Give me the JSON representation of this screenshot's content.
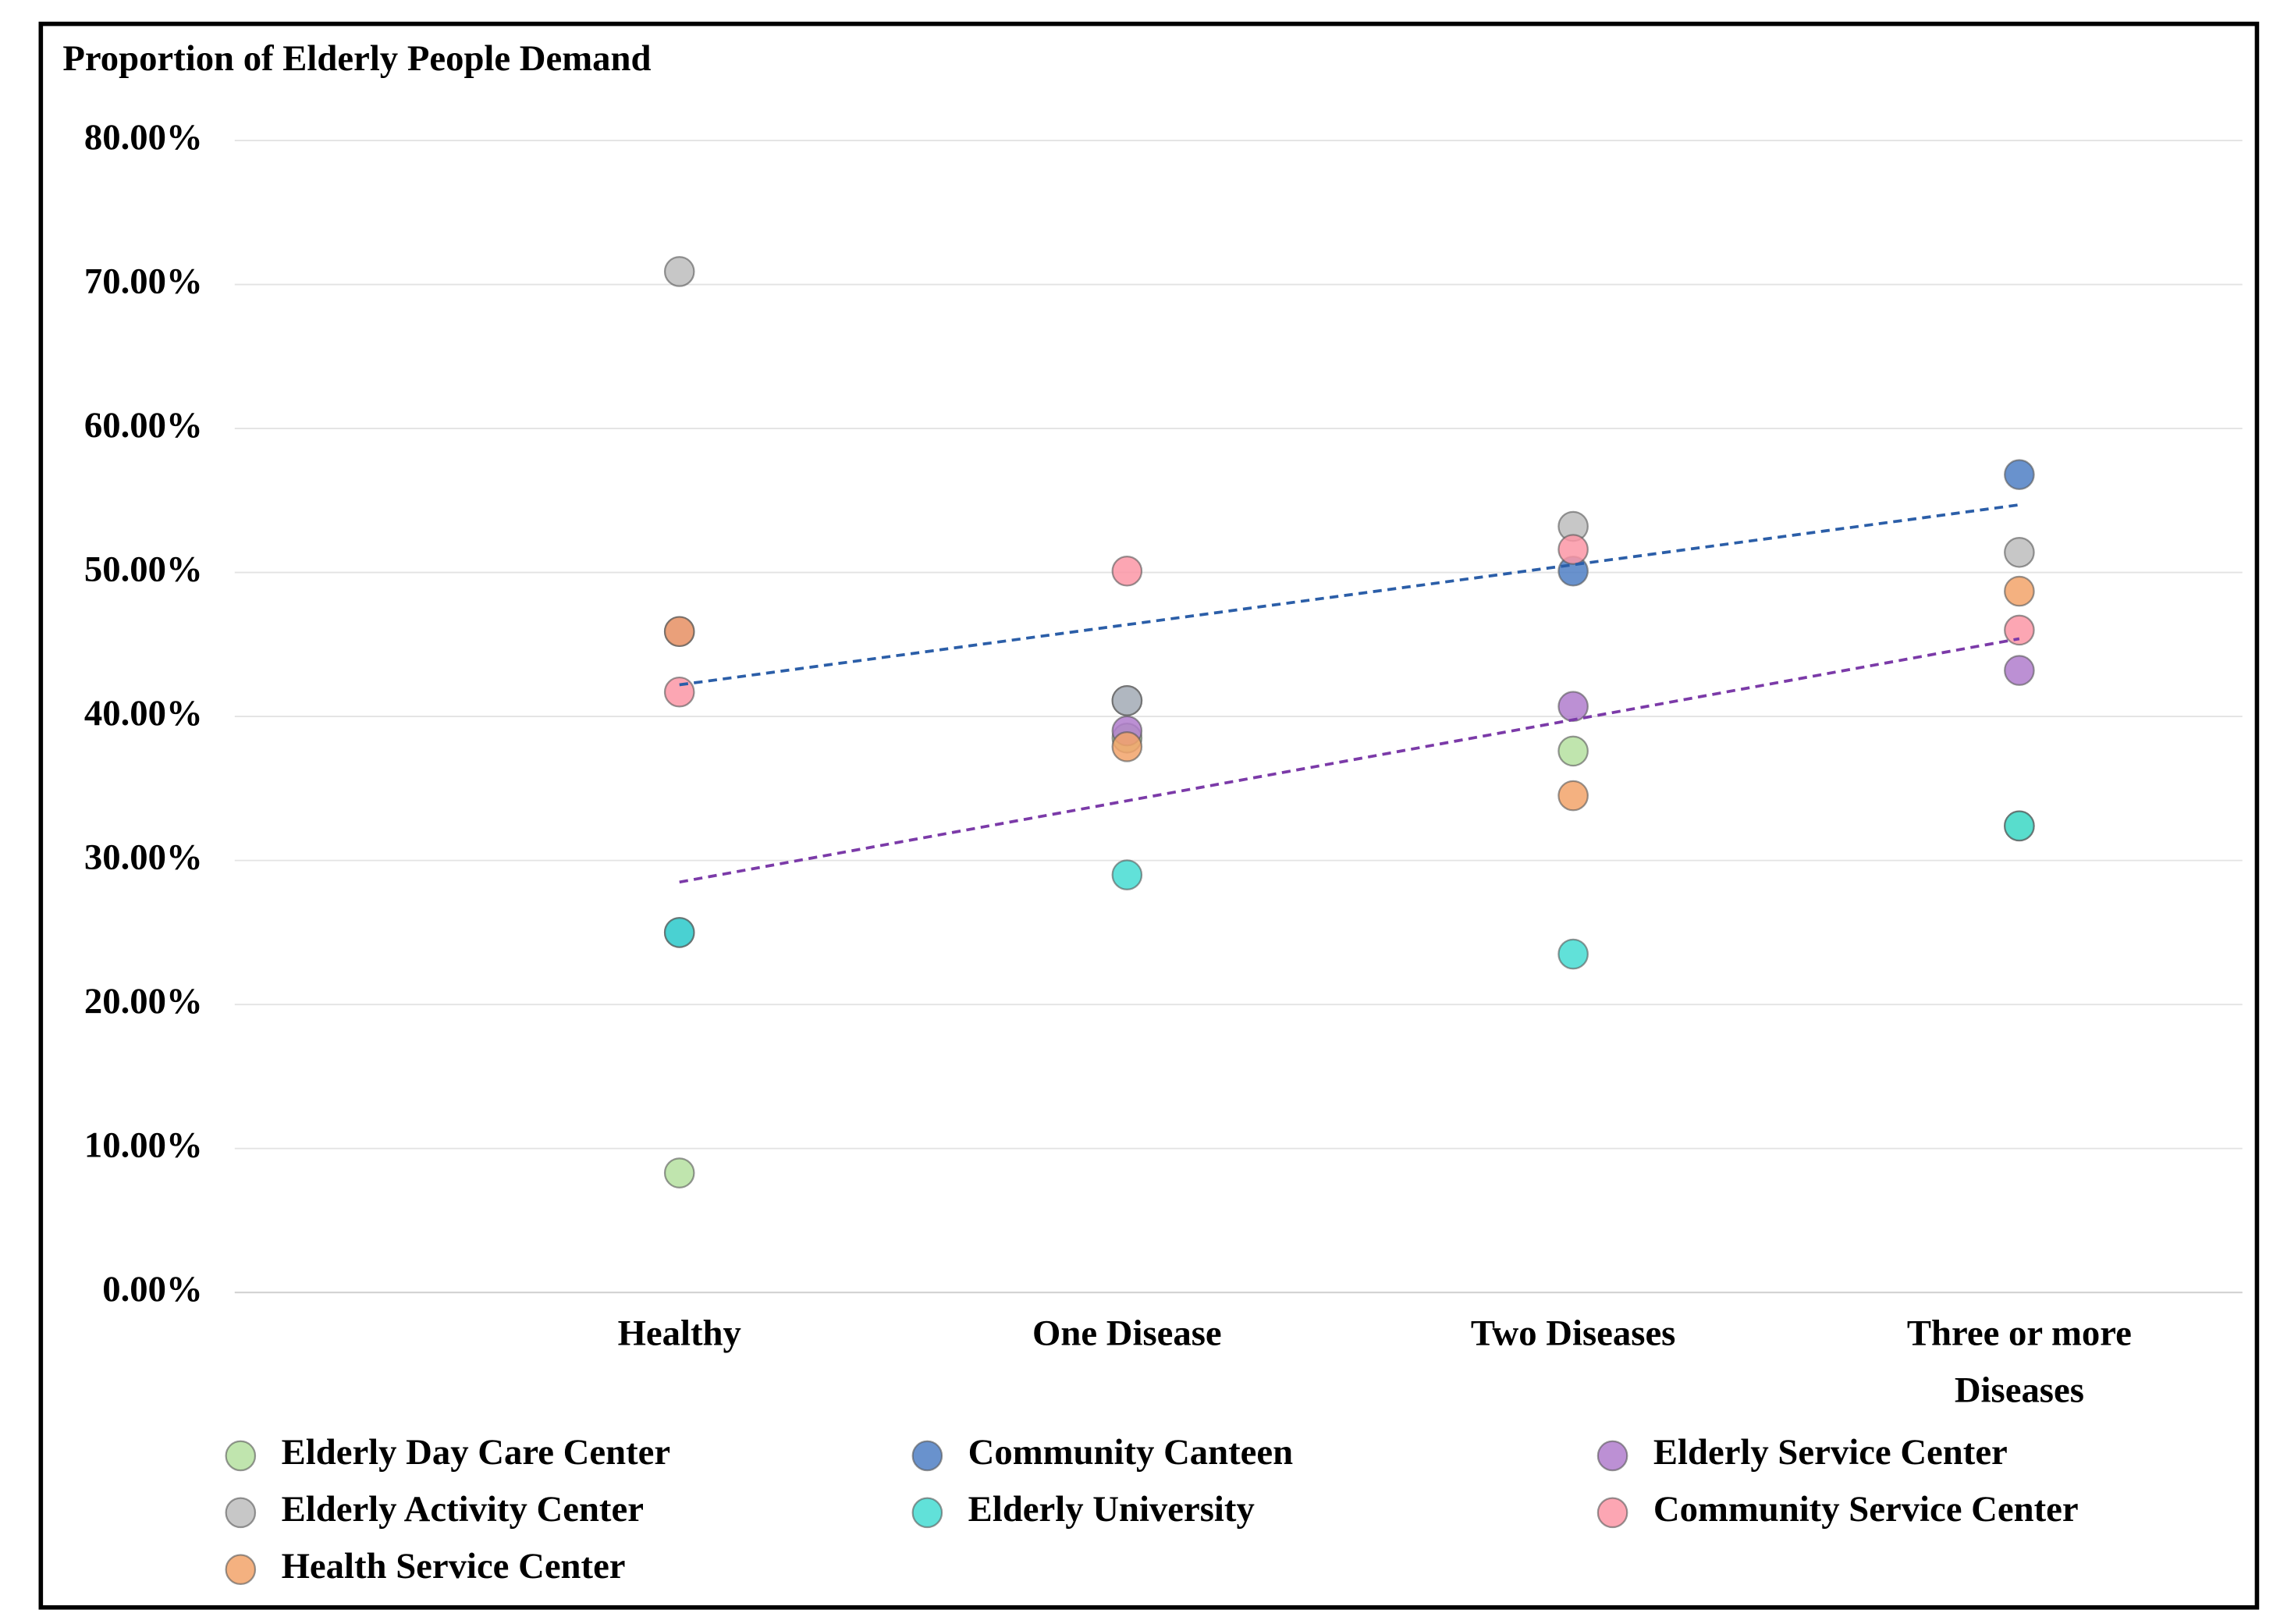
{
  "chart_data": {
    "type": "scatter",
    "title": "Proportion of Elderly People Demand",
    "categories": [
      "Healthy",
      "One Disease",
      "Two Diseases",
      "Three or more Diseases"
    ],
    "ylim": [
      0,
      80
    ],
    "yticks": [
      {
        "value": 0,
        "label": "0.00%"
      },
      {
        "value": 10,
        "label": "10.00%"
      },
      {
        "value": 20,
        "label": "20.00%"
      },
      {
        "value": 30,
        "label": "30.00%"
      },
      {
        "value": 40,
        "label": "40.00%"
      },
      {
        "value": 50,
        "label": "50.00%"
      },
      {
        "value": 60,
        "label": "60.00%"
      },
      {
        "value": 70,
        "label": "70.00%"
      },
      {
        "value": 80,
        "label": "80.00%"
      }
    ],
    "grid": true,
    "series": [
      {
        "name": "Elderly Day Care Center",
        "color": "#b5e0a0",
        "values": [
          8.3,
          38.5,
          37.6,
          32.4
        ]
      },
      {
        "name": "Community Canteen",
        "color": "#4f7fc4",
        "values": [
          25.0,
          41.1,
          50.1,
          56.8
        ]
      },
      {
        "name": "Elderly Service Center",
        "color": "#b07ccc",
        "values": [
          45.9,
          39.0,
          40.7,
          43.2
        ]
      },
      {
        "name": "Elderly Activity Center",
        "color": "#bdbdbd",
        "values": [
          70.9,
          41.1,
          53.2,
          51.4
        ]
      },
      {
        "name": "Elderly University",
        "color": "#45dcd2",
        "values": [
          25.0,
          29.0,
          23.5,
          32.4
        ]
      },
      {
        "name": "Community Service Center",
        "color": "#fb97a6",
        "values": [
          41.7,
          50.1,
          51.6,
          46.0
        ]
      },
      {
        "name": "Health Service Center",
        "color": "#f2a36a",
        "values": [
          45.9,
          37.9,
          34.5,
          48.7
        ]
      }
    ],
    "trendlines": [
      {
        "color": "#2b5ea8",
        "values": [
          42.2,
          54.7
        ]
      },
      {
        "color": "#7b3aa8",
        "values": [
          28.5,
          45.4
        ]
      }
    ]
  }
}
